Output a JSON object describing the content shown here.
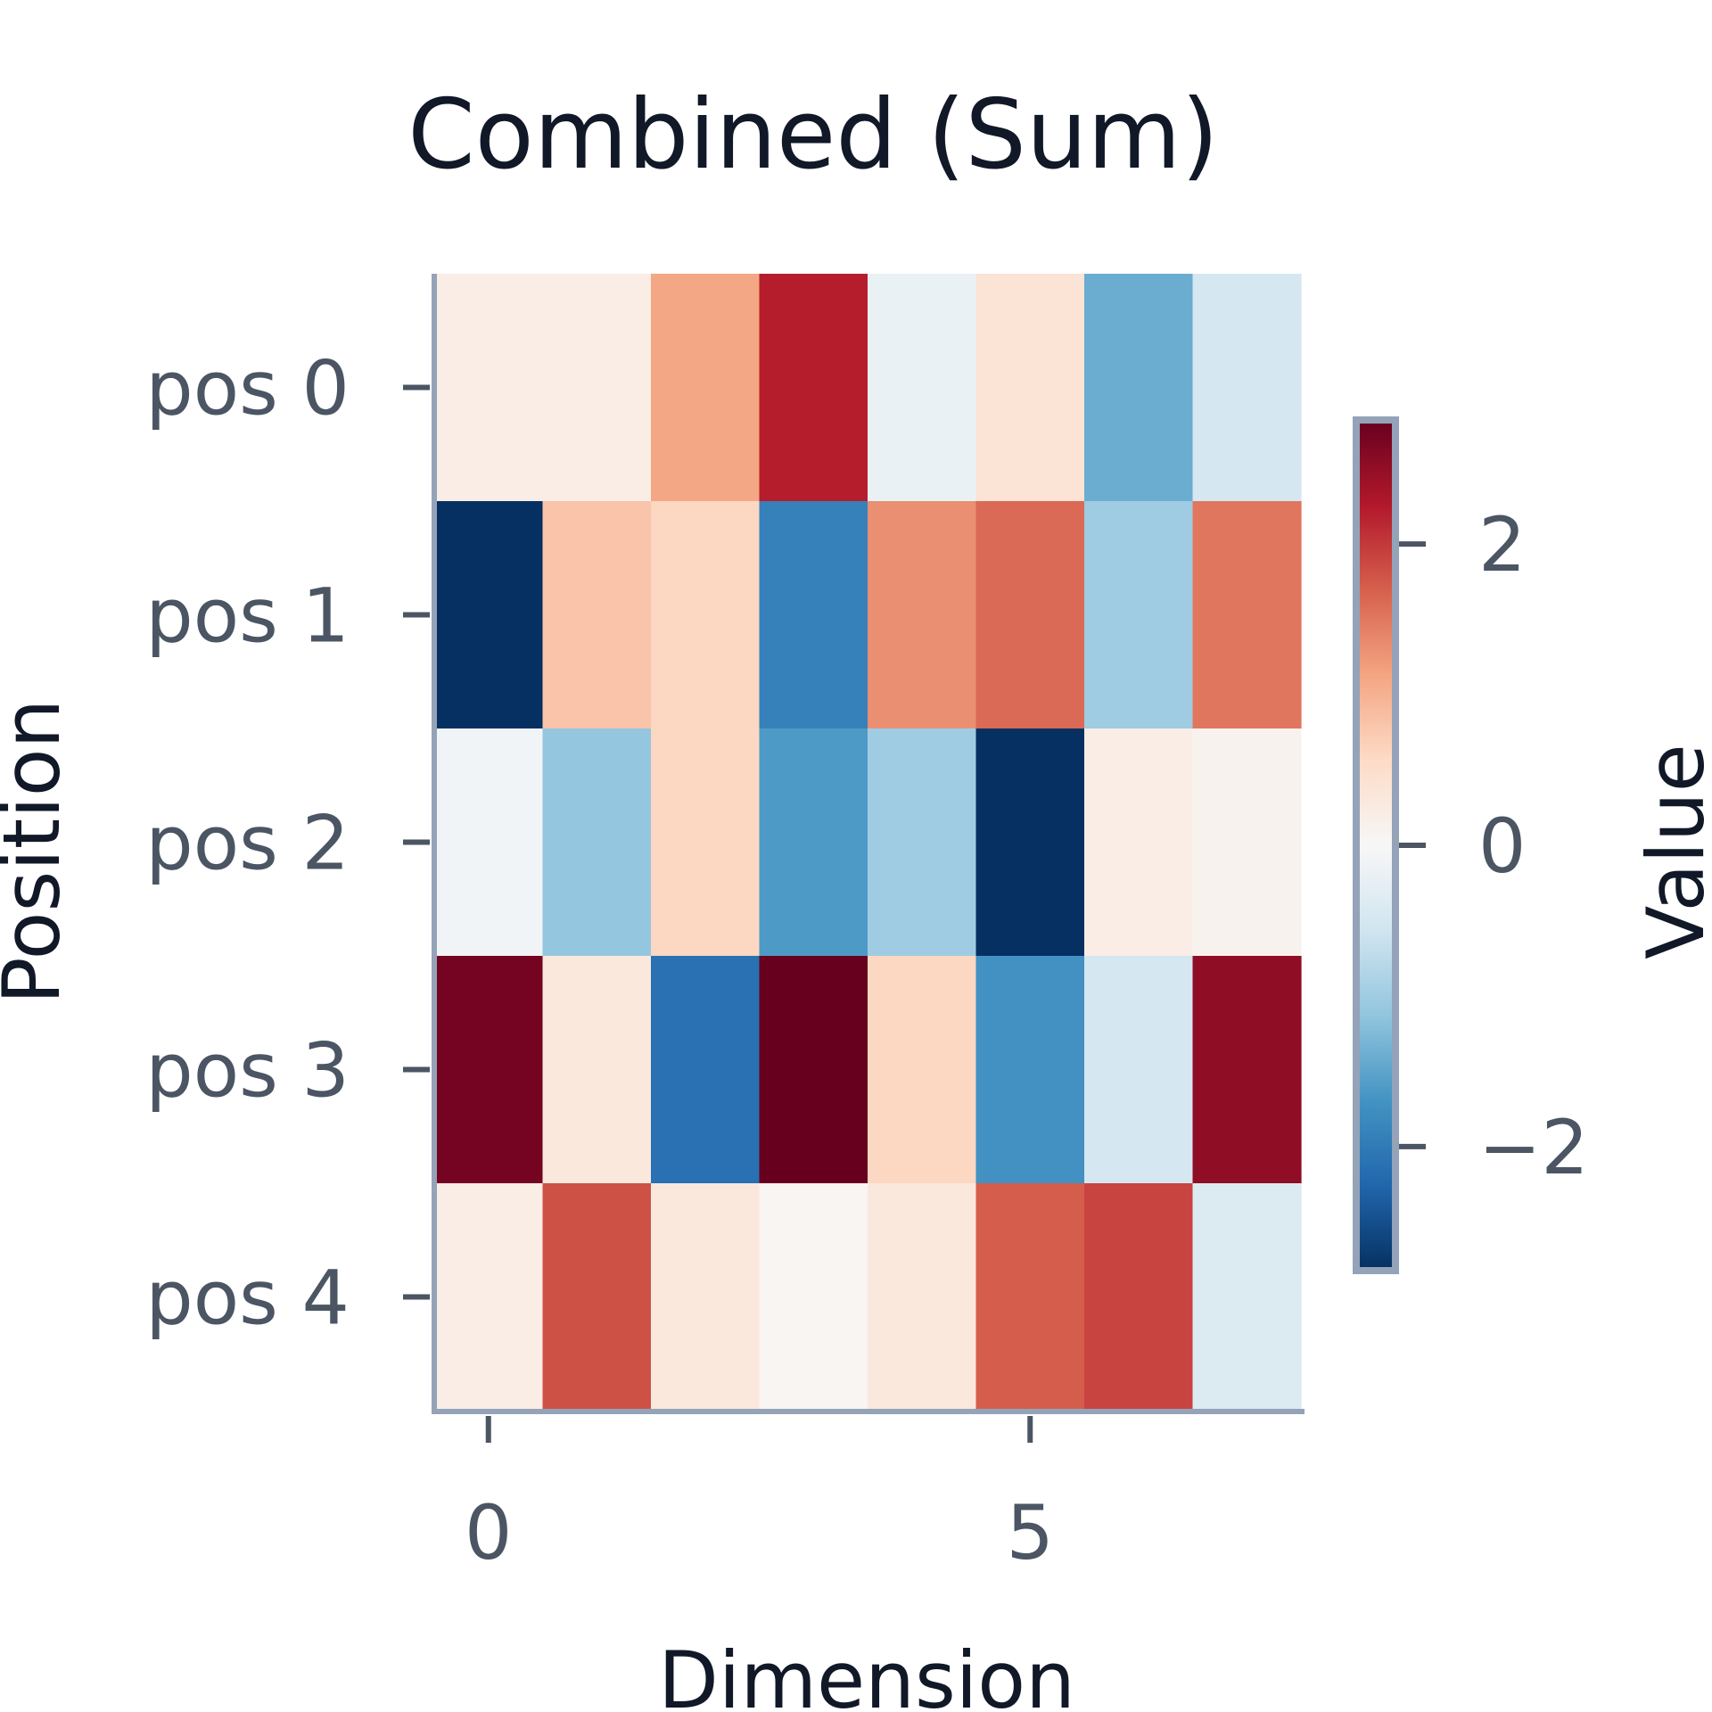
{
  "chart_data": {
    "type": "heatmap",
    "title": "Combined (Sum)",
    "xlabel": "Dimension",
    "ylabel": "Position",
    "colorbar_label": "Value",
    "colormap": "RdBu_r",
    "vmin": -2.8,
    "vmax": 2.8,
    "rows": [
      "pos 0",
      "pos 1",
      "pos 2",
      "pos 3",
      "pos 4"
    ],
    "x_ticks": [
      0,
      5
    ],
    "colorbar_ticks": [
      2,
      0,
      -2
    ],
    "values": [
      [
        0.2,
        0.2,
        1.1,
        2.2,
        -0.2,
        0.4,
        -1.4,
        -0.5
      ],
      [
        -2.8,
        0.8,
        0.6,
        -1.9,
        1.3,
        1.6,
        -1.0,
        1.5
      ],
      [
        -0.1,
        -1.1,
        0.6,
        -1.6,
        -1.0,
        -2.8,
        0.2,
        0.1
      ],
      [
        2.7,
        0.3,
        -2.1,
        2.8,
        0.6,
        -1.7,
        -0.5,
        2.5
      ],
      [
        0.2,
        1.8,
        0.3,
        0.05,
        0.3,
        1.7,
        1.9,
        -0.4
      ]
    ]
  }
}
